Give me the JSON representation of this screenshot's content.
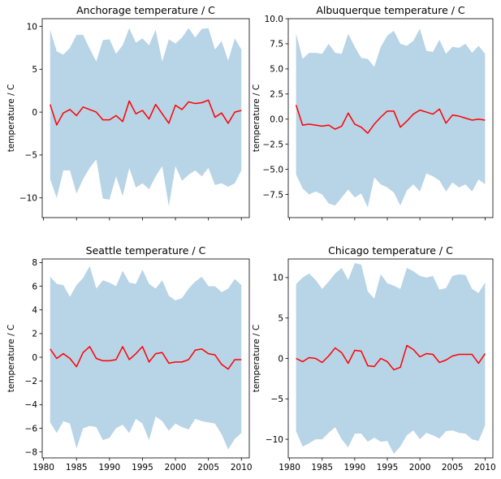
{
  "chart_data": [
    {
      "type": "line",
      "title": "Anchorage temperature / C",
      "xlabel": "",
      "ylabel": "temperature / C",
      "xlim": [
        1979.8,
        2011.2
      ],
      "ylim": [
        -12.3,
        10.9
      ],
      "xticks": [
        1980,
        1985,
        1990,
        1995,
        2000,
        2005,
        2010
      ],
      "yticks": [
        -10,
        -5,
        0,
        5,
        10
      ],
      "ytick_labels": [
        "−10",
        "−5",
        "0",
        "5",
        "10"
      ],
      "show_xtick_labels": false,
      "grid": false,
      "mean_color": "#ff0000",
      "band_color": "#b8d4e7",
      "x": [
        1981,
        1982,
        1983,
        1984,
        1985,
        1986,
        1987,
        1988,
        1989,
        1990,
        1991,
        1992,
        1993,
        1994,
        1995,
        1996,
        1997,
        1998,
        1999,
        2000,
        2001,
        2002,
        2003,
        2004,
        2005,
        2006,
        2007,
        2008,
        2009,
        2010
      ],
      "series": [
        {
          "role": "max",
          "values": [
            9.6,
            7.1,
            6.7,
            7.5,
            9.0,
            9.0,
            7.4,
            5.9,
            8.4,
            8.5,
            6.8,
            7.8,
            9.8,
            8.1,
            8.6,
            7.8,
            9.6,
            5.9,
            8.5,
            8.0,
            8.7,
            9.8,
            8.7,
            9.7,
            9.8,
            7.3,
            8.3,
            6.0,
            8.6,
            7.3
          ]
        },
        {
          "role": "mean",
          "values": [
            0.9,
            -1.5,
            -0.1,
            0.3,
            -0.4,
            0.6,
            0.3,
            0.0,
            -0.9,
            -0.9,
            -0.4,
            -1.1,
            1.3,
            -0.2,
            0.2,
            -0.8,
            0.9,
            -0.2,
            -1.3,
            0.8,
            0.3,
            1.2,
            1.0,
            1.1,
            1.4,
            -0.6,
            -0.1,
            -1.3,
            0.0,
            0.2
          ]
        },
        {
          "role": "min",
          "values": [
            -7.8,
            -10.0,
            -6.8,
            -6.8,
            -9.5,
            -7.8,
            -6.5,
            -5.5,
            -10.1,
            -10.2,
            -7.5,
            -9.8,
            -6.5,
            -8.8,
            -8.3,
            -9.0,
            -7.5,
            -6.3,
            -11.0,
            -6.3,
            -8.0,
            -7.3,
            -6.8,
            -7.5,
            -6.5,
            -8.5,
            -8.3,
            -8.7,
            -8.3,
            -6.8
          ]
        }
      ]
    },
    {
      "type": "line",
      "title": "Albuquerque temperature / C",
      "xlabel": "",
      "ylabel": "temperature / C",
      "xlim": [
        1979.8,
        2011.2
      ],
      "ylim": [
        -9.8,
        10.0
      ],
      "xticks": [
        1980,
        1985,
        1990,
        1995,
        2000,
        2005,
        2010
      ],
      "yticks": [
        -7.5,
        -5.0,
        -2.5,
        0.0,
        2.5,
        5.0,
        7.5,
        10.0
      ],
      "ytick_labels": [
        "−7.5",
        "−5.0",
        "−2.5",
        "0.0",
        "2.5",
        "5.0",
        "7.5",
        "10.0"
      ],
      "show_xtick_labels": false,
      "grid": false,
      "mean_color": "#ff0000",
      "band_color": "#b8d4e7",
      "x": [
        1981,
        1982,
        1983,
        1984,
        1985,
        1986,
        1987,
        1988,
        1989,
        1990,
        1991,
        1992,
        1993,
        1994,
        1995,
        1996,
        1997,
        1998,
        1999,
        2000,
        2001,
        2002,
        2003,
        2004,
        2005,
        2006,
        2007,
        2008,
        2009,
        2010
      ],
      "series": [
        {
          "role": "max",
          "values": [
            8.5,
            6.0,
            6.6,
            6.6,
            6.5,
            7.5,
            6.6,
            6.5,
            8.5,
            7.2,
            6.1,
            6.0,
            5.2,
            7.2,
            8.3,
            8.8,
            7.5,
            7.3,
            7.8,
            9.0,
            6.8,
            6.7,
            7.9,
            6.5,
            7.2,
            7.1,
            7.5,
            6.6,
            7.3,
            6.5
          ]
        },
        {
          "role": "mean",
          "values": [
            1.4,
            -0.6,
            -0.5,
            -0.6,
            -0.7,
            -0.6,
            -1.0,
            -0.7,
            0.6,
            -0.5,
            -0.8,
            -1.4,
            -0.5,
            0.2,
            0.8,
            0.8,
            -0.8,
            -0.2,
            0.5,
            0.9,
            0.7,
            0.5,
            1.0,
            -0.4,
            0.4,
            0.3,
            0.1,
            -0.1,
            0.0,
            -0.1
          ]
        },
        {
          "role": "min",
          "values": [
            -5.5,
            -6.9,
            -7.5,
            -7.2,
            -7.5,
            -8.4,
            -8.6,
            -7.8,
            -7.0,
            -7.8,
            -7.4,
            -8.8,
            -5.8,
            -6.5,
            -6.8,
            -7.3,
            -8.6,
            -7.1,
            -6.5,
            -7.2,
            -5.4,
            -5.7,
            -6.1,
            -7.2,
            -6.3,
            -6.8,
            -6.5,
            -7.2,
            -6.0,
            -6.5
          ]
        }
      ]
    },
    {
      "type": "line",
      "title": "Seattle temperature / C",
      "xlabel": "",
      "ylabel": "temperature / C",
      "xlim": [
        1979.8,
        2011.2
      ],
      "ylim": [
        -8.5,
        8.3
      ],
      "xticks": [
        1980,
        1985,
        1990,
        1995,
        2000,
        2005,
        2010
      ],
      "yticks": [
        -8,
        -6,
        -4,
        -2,
        0,
        2,
        4,
        6,
        8
      ],
      "ytick_labels": [
        "−8",
        "−6",
        "−4",
        "−2",
        "0",
        "2",
        "4",
        "6",
        "8"
      ],
      "show_xtick_labels": true,
      "grid": false,
      "mean_color": "#ff0000",
      "band_color": "#b8d4e7",
      "x": [
        1981,
        1982,
        1983,
        1984,
        1985,
        1986,
        1987,
        1988,
        1989,
        1990,
        1991,
        1992,
        1993,
        1994,
        1995,
        1996,
        1997,
        1998,
        1999,
        2000,
        2001,
        2002,
        2003,
        2004,
        2005,
        2006,
        2007,
        2008,
        2009,
        2010
      ],
      "series": [
        {
          "role": "max",
          "values": [
            6.8,
            6.2,
            6.1,
            5.1,
            6.1,
            6.7,
            7.7,
            5.8,
            6.5,
            6.3,
            6.0,
            7.3,
            6.3,
            6.2,
            7.4,
            6.2,
            5.8,
            6.5,
            5.2,
            4.8,
            5.0,
            5.8,
            6.4,
            6.8,
            6.0,
            6.0,
            5.5,
            5.8,
            6.6,
            6.1
          ]
        },
        {
          "role": "mean",
          "values": [
            0.7,
            -0.1,
            0.3,
            -0.1,
            -0.8,
            0.4,
            0.9,
            -0.1,
            -0.3,
            -0.3,
            -0.2,
            0.9,
            -0.2,
            0.3,
            0.9,
            -0.4,
            0.3,
            0.4,
            -0.5,
            -0.4,
            -0.4,
            -0.2,
            0.6,
            0.7,
            0.3,
            0.2,
            -0.6,
            -1.0,
            -0.2,
            -0.2
          ]
        },
        {
          "role": "min",
          "values": [
            -5.5,
            -6.4,
            -5.4,
            -5.6,
            -7.7,
            -6.0,
            -5.8,
            -5.9,
            -7.0,
            -6.8,
            -6.0,
            -5.7,
            -6.4,
            -5.2,
            -5.6,
            -7.0,
            -5.0,
            -5.4,
            -6.2,
            -5.6,
            -5.9,
            -6.1,
            -5.2,
            -5.4,
            -5.5,
            -5.6,
            -6.5,
            -7.8,
            -6.9,
            -6.4
          ]
        }
      ]
    },
    {
      "type": "line",
      "title": "Chicago temperature / C",
      "xlabel": "",
      "ylabel": "temperature / C",
      "xlim": [
        1979.8,
        2011.2
      ],
      "ylim": [
        -12.3,
        12.3
      ],
      "xticks": [
        1980,
        1985,
        1990,
        1995,
        2000,
        2005,
        2010
      ],
      "yticks": [
        -10,
        -5,
        0,
        5,
        10
      ],
      "ytick_labels": [
        "−10",
        "−5",
        "0",
        "5",
        "10"
      ],
      "show_xtick_labels": true,
      "grid": false,
      "mean_color": "#ff0000",
      "band_color": "#b8d4e7",
      "x": [
        1981,
        1982,
        1983,
        1984,
        1985,
        1986,
        1987,
        1988,
        1989,
        1990,
        1991,
        1992,
        1993,
        1994,
        1995,
        1996,
        1997,
        1998,
        1999,
        2000,
        2001,
        2002,
        2003,
        2004,
        2005,
        2006,
        2007,
        2008,
        2009,
        2010
      ],
      "series": [
        {
          "role": "max",
          "values": [
            9.2,
            10.0,
            10.5,
            9.7,
            8.6,
            9.5,
            10.5,
            11.2,
            9.7,
            11.8,
            11.6,
            8.3,
            7.4,
            10.4,
            9.3,
            9.0,
            8.6,
            11.2,
            10.8,
            10.2,
            10.0,
            10.2,
            8.5,
            8.7,
            10.2,
            10.4,
            10.3,
            8.6,
            8.1,
            9.4
          ]
        },
        {
          "role": "mean",
          "values": [
            0.0,
            -0.4,
            0.1,
            0.0,
            -0.5,
            0.3,
            1.3,
            0.7,
            -0.6,
            1.0,
            0.9,
            -0.9,
            -1.0,
            0.0,
            -0.4,
            -1.4,
            -1.1,
            1.6,
            1.1,
            0.2,
            0.6,
            0.5,
            -0.5,
            -0.2,
            0.3,
            0.5,
            0.5,
            0.5,
            -0.6,
            0.6
          ]
        },
        {
          "role": "min",
          "values": [
            -9.0,
            -10.9,
            -10.5,
            -10.0,
            -10.0,
            -9.2,
            -8.5,
            -10.0,
            -11.0,
            -9.3,
            -9.3,
            -10.3,
            -9.8,
            -10.3,
            -10.2,
            -11.8,
            -10.9,
            -9.5,
            -8.9,
            -10.0,
            -9.2,
            -9.5,
            -9.9,
            -9.0,
            -8.9,
            -9.2,
            -9.3,
            -10.0,
            -10.2,
            -8.3
          ]
        }
      ]
    }
  ]
}
